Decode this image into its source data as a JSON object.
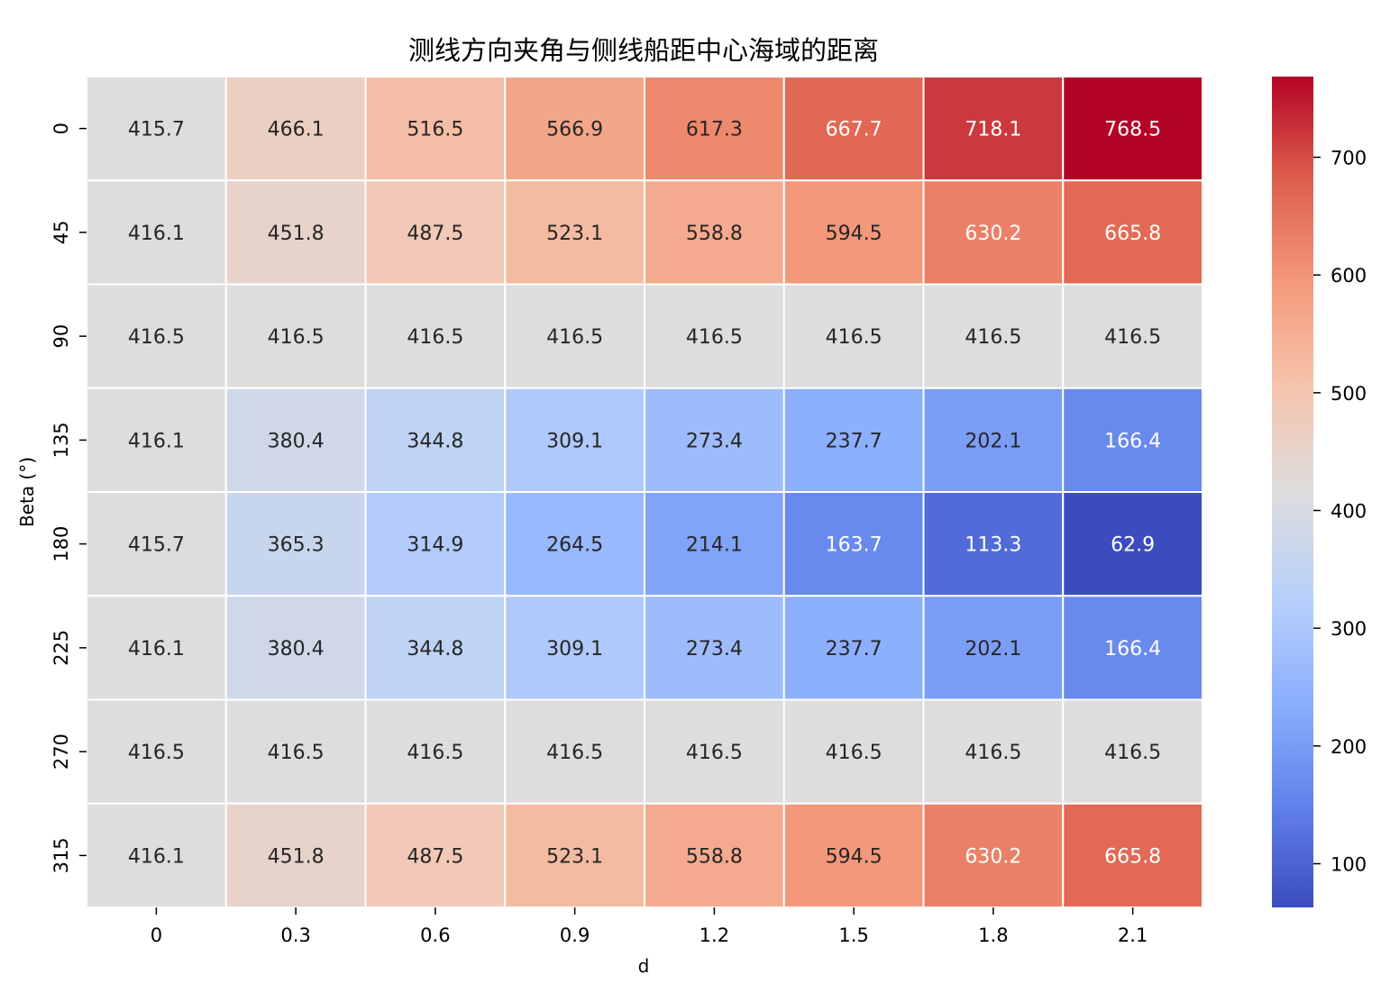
{
  "chart_data": {
    "type": "heatmap",
    "title": "测线方向夹角与侧线船距中心海域的距离",
    "xlabel": "d",
    "ylabel": "Beta (°)",
    "x": [
      "0",
      "0.3",
      "0.6",
      "0.9",
      "1.2",
      "1.5",
      "1.8",
      "2.1"
    ],
    "y": [
      "0",
      "45",
      "90",
      "135",
      "180",
      "225",
      "270",
      "315"
    ],
    "values": [
      [
        415.7,
        466.1,
        516.5,
        566.9,
        617.3,
        667.7,
        718.1,
        768.5
      ],
      [
        416.1,
        451.8,
        487.5,
        523.1,
        558.8,
        594.5,
        630.2,
        665.8
      ],
      [
        416.5,
        416.5,
        416.5,
        416.5,
        416.5,
        416.5,
        416.5,
        416.5
      ],
      [
        416.1,
        380.4,
        344.8,
        309.1,
        273.4,
        237.7,
        202.1,
        166.4
      ],
      [
        415.7,
        365.3,
        314.9,
        264.5,
        214.1,
        163.7,
        113.3,
        62.9
      ],
      [
        416.1,
        380.4,
        344.8,
        309.1,
        273.4,
        237.7,
        202.1,
        166.4
      ],
      [
        416.5,
        416.5,
        416.5,
        416.5,
        416.5,
        416.5,
        416.5,
        416.5
      ],
      [
        416.1,
        451.8,
        487.5,
        523.1,
        558.8,
        594.5,
        630.2,
        665.8
      ]
    ],
    "colormap": "coolwarm",
    "vmin": 62.9,
    "vmax": 768.5,
    "colorbar_ticks": [
      100,
      200,
      300,
      400,
      500,
      600,
      700
    ],
    "grid_line_color": "#ffffff"
  }
}
